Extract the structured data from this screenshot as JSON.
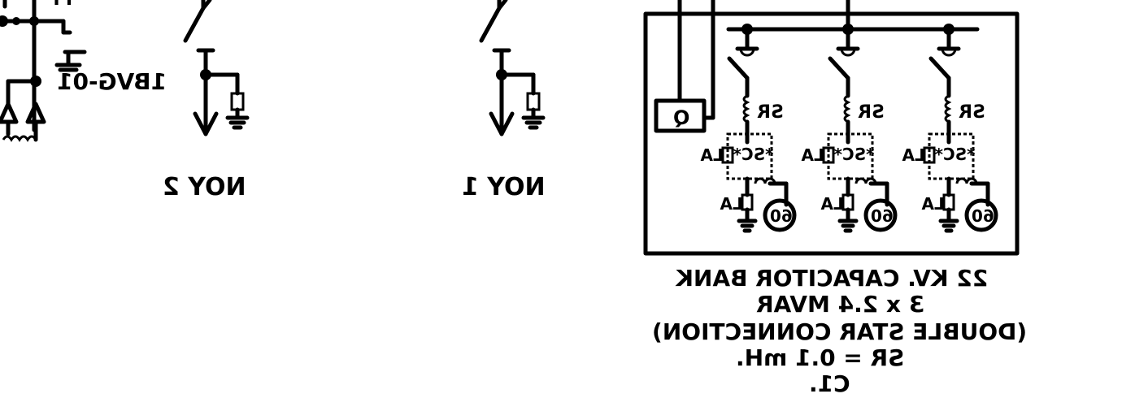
{
  "left_fragment": {
    "label": "1BVG-01",
    "top_label": "TT"
  },
  "feeders": [
    {
      "id": "noy2",
      "label": "NOY 2"
    },
    {
      "id": "noy1",
      "label": "NOY 1"
    }
  ],
  "capacitor_bank": {
    "q_label": "Q",
    "phases": [
      {
        "sr": "SR",
        "sc": "*SC*",
        "la_top": "LA",
        "la_bottom": "LA",
        "ct": "60"
      },
      {
        "sr": "SR",
        "sc": "*SC*",
        "la_top": "LA",
        "la_bottom": "LA",
        "ct": "60"
      },
      {
        "sr": "SR",
        "sc": "*SC*",
        "la_top": "LA",
        "la_bottom": "LA",
        "ct": "60"
      }
    ],
    "caption": {
      "line1": "22 KV. CAPACITOR BANK",
      "line2": "3 x 2.4 MVAR",
      "line3": "(DOUBLE STAR CONNECTION)",
      "line4": "SR = 0.1 mH.",
      "line5": "C1."
    }
  }
}
